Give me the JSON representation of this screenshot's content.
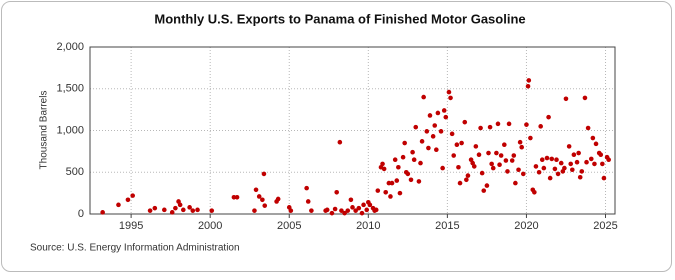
{
  "chart_data": {
    "type": "scatter",
    "title": "Monthly U.S. Exports to Panama of Finished Motor Gasoline",
    "y_label": "Thousand Barrels",
    "source": "Source: U.S. Energy Information Administration",
    "color": "#c00000",
    "grid": true,
    "xlim": [
      1992.4,
      2025.6
    ],
    "xticks": [
      1995,
      2000,
      2005,
      2010,
      2015,
      2020,
      2025
    ],
    "ylim": [
      0,
      2000
    ],
    "yticks": [
      0,
      500,
      {
        "value": 1000,
        "label": "1,000"
      },
      {
        "value": 1500,
        "label": "1,500"
      },
      {
        "value": 2000,
        "label": "2,000"
      }
    ],
    "x": [
      1993.2,
      1994.2,
      1994.8,
      1995.1,
      1996.2,
      1996.5,
      1997.1,
      1997.6,
      1997.8,
      1998.0,
      1998.1,
      1998.3,
      1998.7,
      1998.9,
      1999.2,
      2000.1,
      2001.5,
      2001.7,
      2002.8,
      2002.9,
      2003.1,
      2003.3,
      2003.4,
      2003.45,
      2004.2,
      2004.3,
      2005.0,
      2005.1,
      2006.1,
      2006.2,
      2006.4,
      2007.3,
      2007.4,
      2007.7,
      2007.9,
      2008.0,
      2008.2,
      2008.3,
      2008.5,
      2008.7,
      2008.9,
      2009.0,
      2009.2,
      2009.4,
      2009.6,
      2009.7,
      2009.9,
      2010.0,
      2010.1,
      2010.3,
      2010.4,
      2010.5,
      2010.6,
      2010.8,
      2010.9,
      2011.0,
      2011.1,
      2011.3,
      2011.4,
      2011.5,
      2011.7,
      2011.8,
      2011.9,
      2012.0,
      2012.2,
      2012.3,
      2012.4,
      2012.5,
      2012.7,
      2012.8,
      2012.9,
      2013.0,
      2013.2,
      2013.3,
      2013.4,
      2013.5,
      2013.7,
      2013.8,
      2013.9,
      2014.1,
      2014.2,
      2014.3,
      2014.4,
      2014.6,
      2014.7,
      2014.8,
      2014.9,
      2015.1,
      2015.2,
      2015.3,
      2015.4,
      2015.6,
      2015.7,
      2015.8,
      2015.9,
      2016.1,
      2016.2,
      2016.3,
      2016.5,
      2016.6,
      2016.7,
      2016.8,
      2017.0,
      2017.1,
      2017.2,
      2017.3,
      2017.5,
      2017.6,
      2017.7,
      2017.8,
      2017.9,
      2018.1,
      2018.2,
      2018.3,
      2018.4,
      2018.6,
      2018.7,
      2018.8,
      2018.9,
      2019.1,
      2019.2,
      2019.3,
      2019.5,
      2019.6,
      2019.7,
      2019.8,
      2020.0,
      2020.1,
      2020.15,
      2020.25,
      2020.4,
      2020.5,
      2020.6,
      2020.8,
      2020.9,
      2021.0,
      2021.1,
      2021.3,
      2021.4,
      2021.5,
      2021.6,
      2021.8,
      2021.9,
      2022.0,
      2022.2,
      2022.3,
      2022.4,
      2022.5,
      2022.7,
      2022.8,
      2022.9,
      2023.0,
      2023.2,
      2023.3,
      2023.4,
      2023.5,
      2023.7,
      2023.8,
      2023.9,
      2024.1,
      2024.2,
      2024.3,
      2024.4,
      2024.6,
      2024.7,
      2024.8,
      2024.9,
      2025.1,
      2025.2
    ],
    "values": [
      20,
      110,
      170,
      220,
      40,
      70,
      50,
      20,
      70,
      150,
      110,
      50,
      80,
      40,
      50,
      40,
      200,
      200,
      40,
      290,
      210,
      170,
      480,
      100,
      150,
      180,
      80,
      40,
      310,
      150,
      40,
      40,
      50,
      10,
      60,
      260,
      860,
      40,
      10,
      40,
      170,
      80,
      40,
      70,
      10,
      110,
      50,
      140,
      110,
      70,
      40,
      50,
      280,
      560,
      600,
      540,
      260,
      370,
      210,
      370,
      650,
      400,
      560,
      250,
      680,
      850,
      500,
      480,
      410,
      740,
      650,
      1040,
      390,
      610,
      870,
      1400,
      990,
      790,
      1180,
      930,
      1060,
      770,
      1210,
      990,
      550,
      1240,
      1160,
      1460,
      1390,
      960,
      700,
      830,
      560,
      370,
      850,
      1100,
      410,
      460,
      650,
      610,
      570,
      810,
      710,
      1030,
      490,
      280,
      340,
      730,
      1040,
      600,
      550,
      730,
      1080,
      590,
      700,
      830,
      640,
      510,
      1080,
      640,
      700,
      370,
      530,
      860,
      800,
      480,
      1070,
      1530,
      1600,
      910,
      290,
      260,
      570,
      500,
      1050,
      650,
      550,
      670,
      1160,
      430,
      660,
      540,
      650,
      480,
      610,
      510,
      550,
      1380,
      810,
      600,
      530,
      710,
      620,
      730,
      440,
      510,
      1390,
      620,
      1030,
      660,
      910,
      600,
      840,
      730,
      710,
      600,
      430,
      680,
      650
    ]
  }
}
